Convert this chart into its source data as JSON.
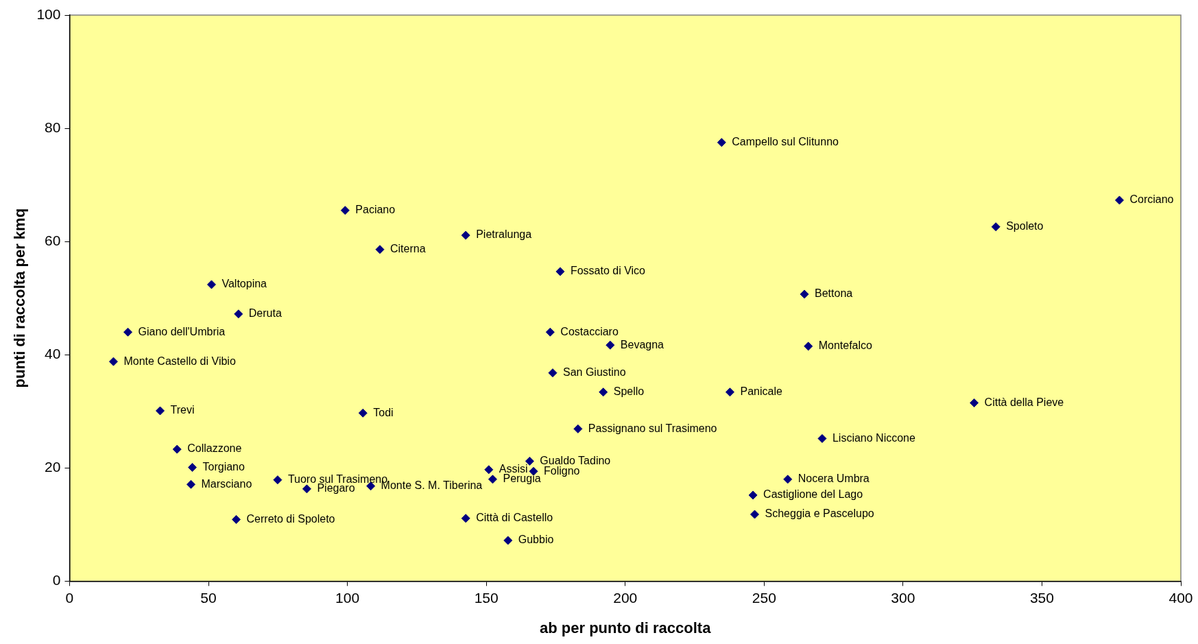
{
  "chart_data": {
    "type": "scatter",
    "xlabel": "ab per punto di raccolta",
    "ylabel": "punti di raccolta per kmq",
    "x": [
      234.7,
      377.9,
      333.4,
      99.2,
      142.6,
      111.7,
      176.6,
      51.1,
      264.5,
      60.8,
      21.0,
      173.0,
      194.6,
      265.9,
      15.8,
      173.9,
      192.1,
      237.7,
      325.6,
      32.6,
      105.6,
      183.0,
      270.9,
      38.7,
      165.6,
      44.2,
      150.9,
      167.0,
      258.5,
      74.9,
      152.3,
      43.7,
      108.4,
      85.4,
      246.0,
      246.6,
      142.6,
      60.0,
      157.8
    ],
    "series": [
      {
        "color": "#000080",
        "values": [
          77.5,
          67.3,
          62.6,
          65.5,
          61.1,
          58.6,
          54.7,
          52.4,
          50.7,
          47.2,
          44.0,
          44.0,
          41.7,
          41.5,
          38.8,
          36.8,
          33.4,
          33.4,
          31.5,
          30.1,
          29.7,
          26.9,
          25.2,
          23.3,
          21.2,
          20.1,
          19.7,
          19.4,
          18.0,
          17.9,
          18.0,
          17.1,
          16.8,
          16.3,
          15.2,
          11.8,
          11.1,
          10.9,
          7.2
        ]
      }
    ],
    "marker": "diamond",
    "grid": false,
    "legend": false,
    "xlim": [
      0,
      400
    ],
    "xticks": [
      0,
      50,
      100,
      150,
      200,
      250,
      300,
      350,
      400
    ],
    "ylim": [
      0,
      100
    ],
    "yticks": [
      0,
      20,
      40,
      60,
      80,
      100
    ],
    "annotations": [
      {
        "text": "Campello sul Clitunno",
        "x": 234.7,
        "y": 77.5
      },
      {
        "text": "Corciano",
        "x": 377.9,
        "y": 67.3
      },
      {
        "text": "Spoleto",
        "x": 333.4,
        "y": 62.6
      },
      {
        "text": "Paciano",
        "x": 99.2,
        "y": 65.5
      },
      {
        "text": "Pietralunga",
        "x": 142.6,
        "y": 61.1
      },
      {
        "text": "Citerna",
        "x": 111.7,
        "y": 58.6
      },
      {
        "text": "Fossato di Vico",
        "x": 176.6,
        "y": 54.7
      },
      {
        "text": "Valtopina",
        "x": 51.1,
        "y": 52.4
      },
      {
        "text": "Bettona",
        "x": 264.5,
        "y": 50.7
      },
      {
        "text": "Deruta",
        "x": 60.8,
        "y": 47.2
      },
      {
        "text": "Giano dell'Umbria",
        "x": 21.0,
        "y": 44.0
      },
      {
        "text": "Costacciaro",
        "x": 173.0,
        "y": 44.0
      },
      {
        "text": "Bevagna",
        "x": 194.6,
        "y": 41.7
      },
      {
        "text": "Montefalco",
        "x": 265.9,
        "y": 41.5
      },
      {
        "text": "Monte Castello di Vibio",
        "x": 15.8,
        "y": 38.8
      },
      {
        "text": "San Giustino",
        "x": 173.9,
        "y": 36.8
      },
      {
        "text": "Spello",
        "x": 192.1,
        "y": 33.4
      },
      {
        "text": "Panicale",
        "x": 237.7,
        "y": 33.4
      },
      {
        "text": "Città della Pieve",
        "x": 325.6,
        "y": 31.5
      },
      {
        "text": "Trevi",
        "x": 32.6,
        "y": 30.1
      },
      {
        "text": "Todi",
        "x": 105.6,
        "y": 29.7
      },
      {
        "text": "Passignano sul Trasimeno",
        "x": 183.0,
        "y": 26.9
      },
      {
        "text": "Lisciano Niccone",
        "x": 270.9,
        "y": 25.2
      },
      {
        "text": "Collazzone",
        "x": 38.7,
        "y": 23.3
      },
      {
        "text": "Gualdo Tadino",
        "x": 165.6,
        "y": 21.2
      },
      {
        "text": "Torgiano",
        "x": 44.2,
        "y": 20.1
      },
      {
        "text": "Assisi",
        "x": 150.9,
        "y": 19.7
      },
      {
        "text": "Foligno",
        "x": 167.0,
        "y": 19.4
      },
      {
        "text": "Nocera Umbra",
        "x": 258.5,
        "y": 18.0
      },
      {
        "text": "Tuoro sul Trasimeno",
        "x": 74.9,
        "y": 17.9
      },
      {
        "text": "Perugia",
        "x": 152.3,
        "y": 18.0
      },
      {
        "text": "Marsciano",
        "x": 43.7,
        "y": 17.1
      },
      {
        "text": "Monte S. M. Tiberina",
        "x": 108.4,
        "y": 16.8
      },
      {
        "text": "Piegaro",
        "x": 85.4,
        "y": 16.3
      },
      {
        "text": "Castiglione del Lago",
        "x": 246.0,
        "y": 15.2
      },
      {
        "text": "Scheggia e Pascelupo",
        "x": 246.6,
        "y": 11.8
      },
      {
        "text": "Città di Castello",
        "x": 142.6,
        "y": 11.1
      },
      {
        "text": "Cerreto di Spoleto",
        "x": 60.0,
        "y": 10.9
      },
      {
        "text": "Gubbio",
        "x": 157.8,
        "y": 7.2
      }
    ]
  }
}
